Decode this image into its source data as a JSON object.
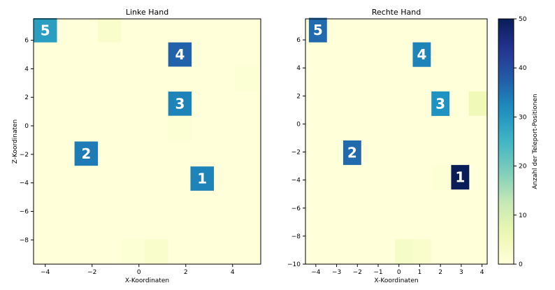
{
  "chart_data": [
    {
      "type": "heatmap",
      "title": "Linke Hand",
      "xlabel": "X-Koordinaten",
      "ylabel": "Z-Koordinaten",
      "xlim": [
        -4.5,
        5.2
      ],
      "ylim": [
        -9.7,
        7.5
      ],
      "x_ticks": [
        -4,
        -2,
        0,
        2,
        4
      ],
      "y_ticks": [
        -8,
        -6,
        -4,
        -2,
        0,
        2,
        4,
        6
      ],
      "cell_size": [
        1.0,
        1.7
      ],
      "cells": [
        {
          "x": -4.0,
          "z": 6.7,
          "count": 29,
          "label": "5"
        },
        {
          "x": 1.75,
          "z": 5.0,
          "count": 37,
          "label": "4"
        },
        {
          "x": 1.75,
          "z": 1.55,
          "count": 33,
          "label": "3"
        },
        {
          "x": -2.25,
          "z": -1.95,
          "count": 34,
          "label": "2"
        },
        {
          "x": 2.7,
          "z": -3.7,
          "count": 33,
          "label": "1"
        },
        {
          "x": -1.25,
          "z": 6.7,
          "count": 2
        },
        {
          "x": 4.6,
          "z": 3.3,
          "count": 1
        },
        {
          "x": 1.75,
          "z": -0.15,
          "count": 1
        },
        {
          "x": -0.25,
          "z": -8.8,
          "count": 1
        },
        {
          "x": 0.75,
          "z": -8.8,
          "count": 2
        }
      ]
    },
    {
      "type": "heatmap",
      "title": "Rechte Hand",
      "xlabel": "X-Koordinaten",
      "ylabel": "",
      "xlim": [
        -4.5,
        4.25
      ],
      "ylim": [
        -10,
        7.5
      ],
      "x_ticks": [
        -4,
        -3,
        -2,
        -1,
        0,
        1,
        2,
        3,
        4
      ],
      "y_ticks": [
        -10,
        -8,
        -6,
        -4,
        -2,
        0,
        2,
        4,
        6
      ],
      "cell_size": [
        0.87,
        1.75
      ],
      "cells": [
        {
          "x": -3.9,
          "z": 6.7,
          "count": 36,
          "label": "5"
        },
        {
          "x": 1.1,
          "z": 4.95,
          "count": 33,
          "label": "4"
        },
        {
          "x": 2.0,
          "z": 1.45,
          "count": 31,
          "label": "3"
        },
        {
          "x": -2.25,
          "z": -2.05,
          "count": 36,
          "label": "2"
        },
        {
          "x": 2.95,
          "z": -3.8,
          "count": 50,
          "label": "1"
        },
        {
          "x": 3.8,
          "z": 1.45,
          "count": 5
        },
        {
          "x": 2.0,
          "z": -3.8,
          "count": 1
        },
        {
          "x": 0.25,
          "z": -9.1,
          "count": 3
        },
        {
          "x": 1.1,
          "z": -9.1,
          "count": 2
        }
      ]
    }
  ],
  "colorbar": {
    "label": "Anzahl der Teleport-Positionen",
    "min": 0,
    "max": 50,
    "ticks": [
      0,
      10,
      20,
      30,
      40,
      50
    ],
    "colormap": "YlGnBu"
  }
}
